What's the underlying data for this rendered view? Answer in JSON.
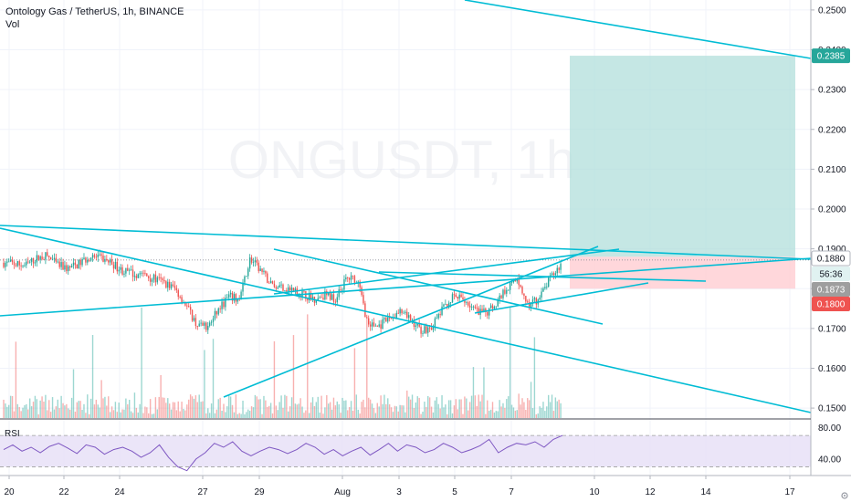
{
  "header": {
    "symbol_title": "Ontology Gas / TetherUS, 1h, BINANCE",
    "volume_label": "Vol",
    "watermark": "ONGUSDT, 1h"
  },
  "rsi_label": "RSI",
  "colors": {
    "up": "#26a69a",
    "down": "#ef5350",
    "trendline": "#00bcd4",
    "rsi": "#7e57c2",
    "profit_zone": "#b2dfdb",
    "loss_zone": "#ffcdd2"
  },
  "chart_data": [
    {
      "type": "candlestick",
      "title": "Ontology Gas / TetherUS, 1h, BINANCE",
      "ylim": [
        0.1475,
        0.2525
      ],
      "y_ticks": [
        "0.2500",
        "0.2400",
        "0.2300",
        "0.2200",
        "0.2100",
        "0.2000",
        "0.1900",
        "0.1800",
        "0.1700",
        "0.1600",
        "0.1500"
      ],
      "x_ticks": [
        "20",
        "22",
        "24",
        "27",
        "29",
        "Aug",
        "3",
        "5",
        "7",
        "10",
        "12",
        "14",
        "17"
      ],
      "close_path": [
        0.1865,
        0.1862,
        0.1858,
        0.1875,
        0.1883,
        0.186,
        0.185,
        0.1862,
        0.188,
        0.1876,
        0.1866,
        0.1846,
        0.1838,
        0.1835,
        0.1825,
        0.1815,
        0.18,
        0.176,
        0.171,
        0.1702,
        0.1745,
        0.178,
        0.1772,
        0.1875,
        0.1845,
        0.181,
        0.1805,
        0.1795,
        0.1785,
        0.1775,
        0.1785,
        0.1775,
        0.1825,
        0.1825,
        0.171,
        0.1705,
        0.1725,
        0.174,
        0.1722,
        0.1695,
        0.1705,
        0.175,
        0.178,
        0.1772,
        0.1745,
        0.1738,
        0.1765,
        0.1805,
        0.1822,
        0.1755,
        0.1775,
        0.1825,
        0.186
      ],
      "price_labels": [
        {
          "value": "0.2385",
          "role": "target"
        },
        {
          "value": "0.1880",
          "role": "entry"
        },
        {
          "value": "56:36",
          "role": "countdown"
        },
        {
          "value": "0.1873",
          "role": "last-price"
        },
        {
          "value": "0.1800",
          "role": "stop"
        }
      ],
      "position": {
        "entry": 0.188,
        "target": 0.2385,
        "stop": 0.18
      }
    },
    {
      "type": "line",
      "title": "RSI",
      "ylim": [
        20,
        90
      ],
      "y_ticks": [
        "80.00",
        "40.00"
      ],
      "band": [
        30,
        70
      ],
      "values": [
        52,
        58,
        50,
        55,
        48,
        56,
        60,
        54,
        47,
        58,
        55,
        46,
        52,
        55,
        50,
        42,
        48,
        58,
        42,
        30,
        25,
        40,
        48,
        60,
        55,
        62,
        50,
        44,
        50,
        55,
        52,
        47,
        52,
        60,
        55,
        46,
        52,
        44,
        50,
        55,
        45,
        52,
        60,
        50,
        58,
        55,
        48,
        52,
        60,
        55,
        48,
        52,
        57,
        65,
        48,
        55,
        60,
        58,
        62,
        55,
        65,
        70
      ]
    }
  ]
}
